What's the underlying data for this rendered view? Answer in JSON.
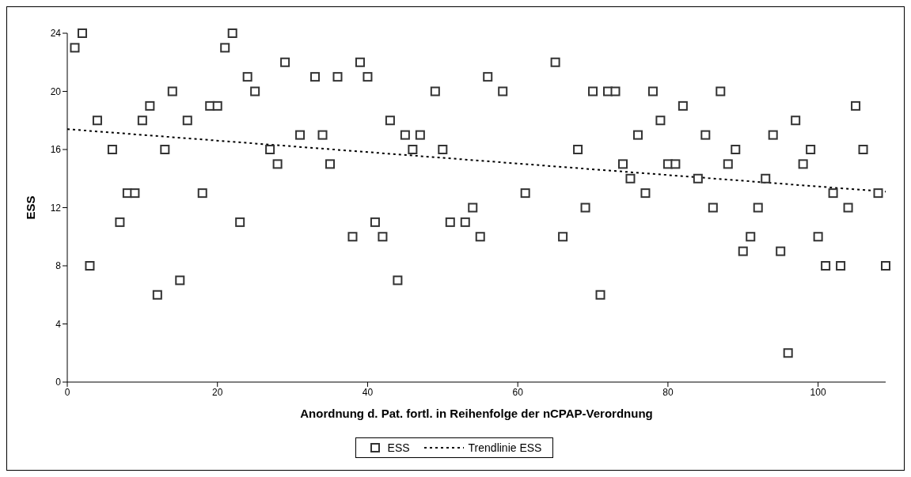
{
  "chart_data": {
    "type": "scatter",
    "xlabel": "Anordnung d. Pat. fortl. in Reihenfolge der nCPAP-Verordnung",
    "ylabel": "ESS",
    "xlim": [
      0,
      109
    ],
    "xticks": [
      0,
      20,
      40,
      60,
      80,
      100
    ],
    "ylim": [
      0,
      24
    ],
    "yticks": [
      0,
      4,
      8,
      12,
      16,
      20,
      24
    ],
    "legend": "bottom",
    "marker": "square",
    "series": [
      {
        "name": "ESS",
        "color": "#333333",
        "x": [
          1,
          2,
          3,
          4,
          6,
          7,
          8,
          9,
          10,
          11,
          12,
          13,
          14,
          15,
          16,
          18,
          19,
          20,
          21,
          22,
          23,
          24,
          25,
          27,
          28,
          29,
          31,
          33,
          34,
          35,
          36,
          38,
          39,
          40,
          41,
          42,
          43,
          44,
          45,
          46,
          47,
          49,
          50,
          51,
          53,
          54,
          55,
          56,
          58,
          61,
          65,
          66,
          68,
          69,
          70,
          71,
          72,
          73,
          74,
          75,
          76,
          77,
          78,
          79,
          80,
          81,
          82,
          84,
          85,
          86,
          87,
          88,
          89,
          90,
          91,
          92,
          93,
          94,
          95,
          96,
          97,
          98,
          99,
          100,
          101,
          102,
          103,
          104,
          105,
          106,
          108,
          109
        ],
        "values": [
          23,
          24,
          8,
          18,
          16,
          11,
          13,
          13,
          18,
          19,
          6,
          16,
          20,
          7,
          18,
          13,
          19,
          19,
          23,
          24,
          11,
          21,
          20,
          16,
          15,
          22,
          17,
          21,
          17,
          15,
          21,
          10,
          22,
          21,
          11,
          10,
          18,
          7,
          17,
          16,
          17,
          20,
          16,
          11,
          11,
          12,
          10,
          21,
          20,
          13,
          22,
          10,
          16,
          12,
          20,
          6,
          20,
          20,
          15,
          14,
          17,
          13,
          20,
          18,
          15,
          15,
          19,
          14,
          17,
          12,
          20,
          15,
          16,
          9,
          10,
          12,
          14,
          17,
          9,
          2,
          18,
          15,
          16,
          10,
          8,
          13,
          8,
          12,
          19,
          16,
          13,
          8
        ]
      },
      {
        "name": "Trendlinie ESS",
        "type": "line",
        "color": "#000000",
        "line_style": "dotted",
        "marker": "none",
        "x": [
          0,
          109
        ],
        "values": [
          17.4,
          13.1
        ]
      }
    ]
  }
}
